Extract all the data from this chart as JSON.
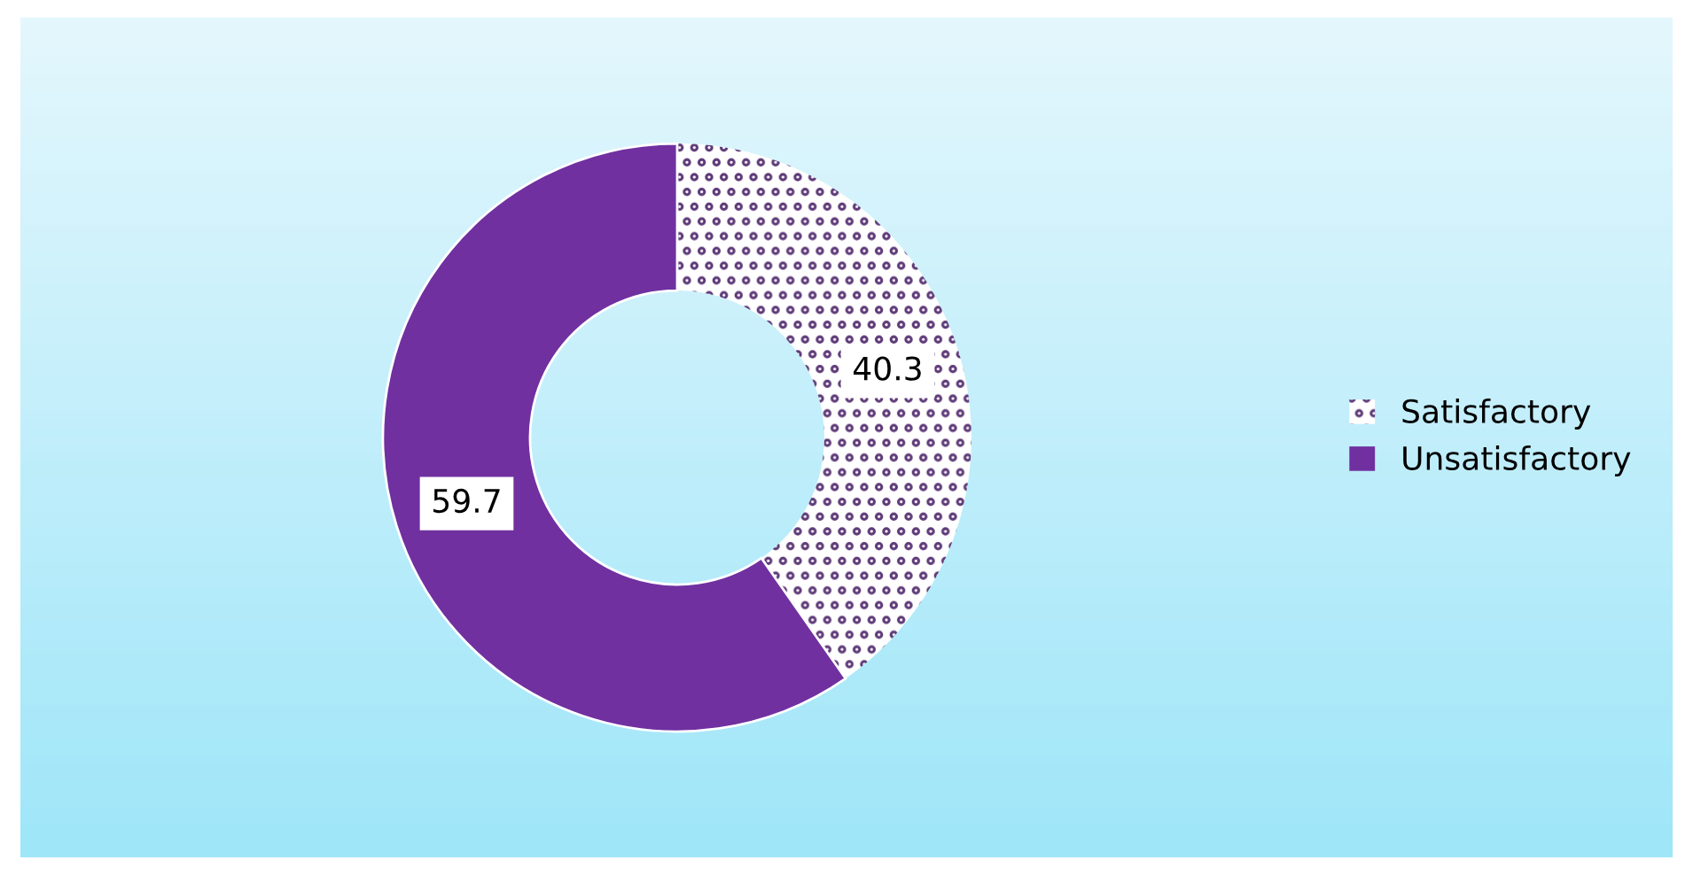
{
  "chart_data": {
    "type": "donut",
    "categories": [
      "Satisfactory",
      "Unsatisfactory"
    ],
    "values": [
      40.3,
      59.7
    ],
    "colors": [
      "#5e3a78",
      "#7030a0"
    ],
    "data_labels": true,
    "legend": "right"
  }
}
